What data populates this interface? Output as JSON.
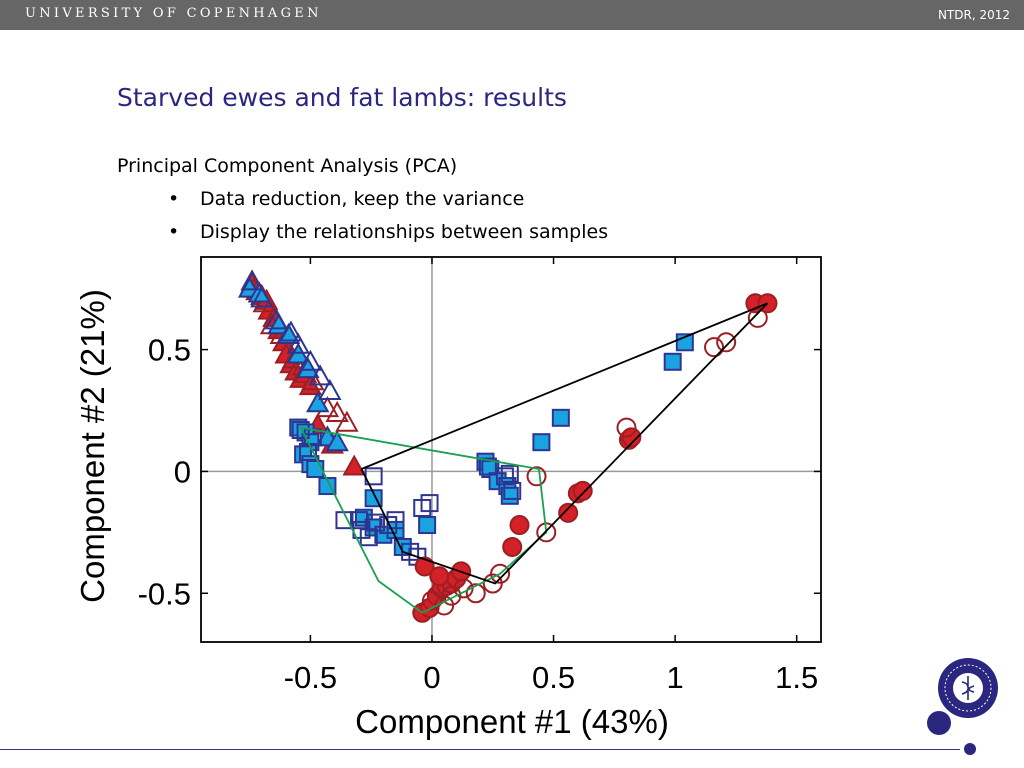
{
  "header": {
    "university": "UNIVERSITY OF COPENHAGEN",
    "conference": "NTDR, 2012"
  },
  "slide": {
    "title": "Starved ewes and fat lambs: results",
    "subtitle": "Principal Component Analysis (PCA)",
    "bullets": [
      "Data reduction, keep the variance",
      "Display the relationships between samples"
    ]
  },
  "colors": {
    "header_bg": "#666666",
    "title": "#2b2680",
    "red": "#d42027",
    "red_dark": "#9b1f24",
    "blue_fill": "#1aa3e0",
    "blue_edge": "#2d3591",
    "green_hull": "#19a050",
    "black_hull": "#000000",
    "grid": "#9a9a9a"
  },
  "chart_data": {
    "type": "scatter",
    "xlabel": "Component #1 (43%)",
    "ylabel": "Component #2 (21%)",
    "xlim": [
      -0.95,
      1.6
    ],
    "ylim": [
      -0.7,
      0.88
    ],
    "xticks": [
      -0.5,
      0,
      0.5,
      1,
      1.5
    ],
    "xtick_labels": [
      "-0.5",
      "0",
      "0.5",
      "1",
      "1.5"
    ],
    "yticks": [
      -0.5,
      0,
      0.5
    ],
    "ytick_labels": [
      "-0.5",
      "0",
      "0.5"
    ],
    "reference_lines": {
      "x": 0,
      "y": 0
    },
    "series": [
      {
        "marker": "triangle",
        "fill": "red",
        "filled": true,
        "points": [
          [
            -0.74,
            0.77
          ],
          [
            -0.72,
            0.74
          ],
          [
            -0.7,
            0.72
          ],
          [
            -0.68,
            0.7
          ],
          [
            -0.67,
            0.66
          ],
          [
            -0.65,
            0.63
          ],
          [
            -0.63,
            0.58
          ],
          [
            -0.61,
            0.53
          ],
          [
            -0.6,
            0.48
          ],
          [
            -0.58,
            0.44
          ],
          [
            -0.56,
            0.41
          ],
          [
            -0.54,
            0.38
          ],
          [
            -0.52,
            0.4
          ],
          [
            -0.5,
            0.35
          ],
          [
            -0.47,
            0.19
          ],
          [
            -0.41,
            0.11
          ],
          [
            -0.32,
            0.02
          ]
        ]
      },
      {
        "marker": "triangle",
        "fill": "red",
        "filled": false,
        "points": [
          [
            -0.73,
            0.75
          ],
          [
            -0.69,
            0.69
          ],
          [
            -0.66,
            0.6
          ],
          [
            -0.62,
            0.56
          ],
          [
            -0.57,
            0.46
          ],
          [
            -0.53,
            0.43
          ],
          [
            -0.49,
            0.37
          ],
          [
            -0.43,
            0.26
          ],
          [
            -0.39,
            0.24
          ],
          [
            -0.35,
            0.2
          ]
        ]
      },
      {
        "marker": "triangle",
        "fill": "blue",
        "filled": true,
        "points": [
          [
            -0.75,
            0.75
          ],
          [
            -0.71,
            0.73
          ],
          [
            -0.63,
            0.6
          ],
          [
            -0.59,
            0.56
          ],
          [
            -0.55,
            0.48
          ],
          [
            -0.51,
            0.42
          ],
          [
            -0.47,
            0.28
          ],
          [
            -0.43,
            0.14
          ],
          [
            -0.39,
            0.12
          ]
        ]
      },
      {
        "marker": "triangle",
        "fill": "blue",
        "filled": false,
        "points": [
          [
            -0.74,
            0.78
          ],
          [
            -0.7,
            0.71
          ],
          [
            -0.64,
            0.62
          ],
          [
            -0.58,
            0.57
          ],
          [
            -0.55,
            0.52
          ],
          [
            -0.5,
            0.45
          ],
          [
            -0.46,
            0.39
          ],
          [
            -0.42,
            0.33
          ]
        ]
      },
      {
        "marker": "square",
        "fill": "blue",
        "filled": true,
        "points": [
          [
            -0.55,
            0.18
          ],
          [
            -0.52,
            0.16
          ],
          [
            -0.5,
            0.12
          ],
          [
            -0.53,
            0.07
          ],
          [
            -0.5,
            0.03
          ],
          [
            -0.48,
            0.01
          ],
          [
            -0.43,
            -0.06
          ],
          [
            -0.24,
            -0.11
          ],
          [
            -0.28,
            -0.19
          ],
          [
            -0.24,
            -0.23
          ],
          [
            -0.2,
            -0.26
          ],
          [
            -0.15,
            -0.24
          ],
          [
            -0.12,
            -0.31
          ],
          [
            -0.02,
            -0.22
          ],
          [
            0.22,
            0.04
          ],
          [
            0.24,
            0.01
          ],
          [
            0.27,
            -0.04
          ],
          [
            0.31,
            -0.06
          ],
          [
            0.32,
            -0.1
          ],
          [
            0.45,
            0.12
          ],
          [
            0.53,
            0.22
          ],
          [
            0.99,
            0.45
          ],
          [
            1.04,
            0.53
          ]
        ]
      },
      {
        "marker": "square",
        "fill": "blue",
        "filled": false,
        "points": [
          [
            -0.54,
            0.17
          ],
          [
            -0.49,
            0.14
          ],
          [
            -0.51,
            0.08
          ],
          [
            -0.36,
            -0.2
          ],
          [
            -0.3,
            -0.2
          ],
          [
            -0.29,
            -0.24
          ],
          [
            -0.26,
            -0.27
          ],
          [
            -0.23,
            -0.21
          ],
          [
            -0.18,
            -0.22
          ],
          [
            -0.15,
            -0.2
          ],
          [
            -0.09,
            -0.33
          ],
          [
            -0.06,
            -0.35
          ],
          [
            -0.04,
            -0.15
          ],
          [
            -0.01,
            -0.13
          ],
          [
            0.23,
            0.02
          ],
          [
            0.32,
            -0.01
          ],
          [
            0.33,
            -0.08
          ],
          [
            0.3,
            -0.02
          ],
          [
            -0.24,
            -0.02
          ]
        ]
      },
      {
        "marker": "circle",
        "fill": "red",
        "filled": true,
        "points": [
          [
            -0.04,
            -0.58
          ],
          [
            -0.01,
            -0.56
          ],
          [
            0.02,
            -0.51
          ],
          [
            0.04,
            -0.48
          ],
          [
            0.06,
            -0.47
          ],
          [
            0.08,
            -0.46
          ],
          [
            0.1,
            -0.44
          ],
          [
            0.12,
            -0.41
          ],
          [
            -0.03,
            -0.39
          ],
          [
            0.03,
            -0.43
          ],
          [
            0.33,
            -0.31
          ],
          [
            0.36,
            -0.22
          ],
          [
            0.56,
            -0.17
          ],
          [
            0.6,
            -0.09
          ],
          [
            0.62,
            -0.08
          ],
          [
            0.81,
            0.13
          ],
          [
            0.82,
            0.14
          ],
          [
            1.33,
            0.69
          ],
          [
            1.38,
            0.69
          ]
        ]
      },
      {
        "marker": "circle",
        "fill": "red",
        "filled": false,
        "points": [
          [
            0.0,
            -0.53
          ],
          [
            0.05,
            -0.55
          ],
          [
            0.08,
            -0.51
          ],
          [
            0.13,
            -0.48
          ],
          [
            0.18,
            -0.5
          ],
          [
            0.25,
            -0.46
          ],
          [
            0.28,
            -0.42
          ],
          [
            0.43,
            -0.02
          ],
          [
            0.47,
            -0.25
          ],
          [
            0.8,
            0.18
          ],
          [
            1.16,
            0.51
          ],
          [
            1.21,
            0.53
          ],
          [
            1.34,
            0.63
          ]
        ]
      }
    ],
    "hulls": [
      {
        "color": "green",
        "points": [
          [
            -0.54,
            0.18
          ],
          [
            0.44,
            0.01
          ],
          [
            0.47,
            -0.25
          ],
          [
            0.28,
            -0.42
          ],
          [
            -0.04,
            -0.58
          ],
          [
            -0.22,
            -0.45
          ],
          [
            -0.54,
            0.18
          ]
        ]
      },
      {
        "color": "black",
        "points": [
          [
            -0.29,
            0.01
          ],
          [
            1.38,
            0.69
          ],
          [
            0.26,
            -0.46
          ],
          [
            -0.12,
            -0.33
          ],
          [
            -0.29,
            0.01
          ]
        ]
      }
    ]
  }
}
